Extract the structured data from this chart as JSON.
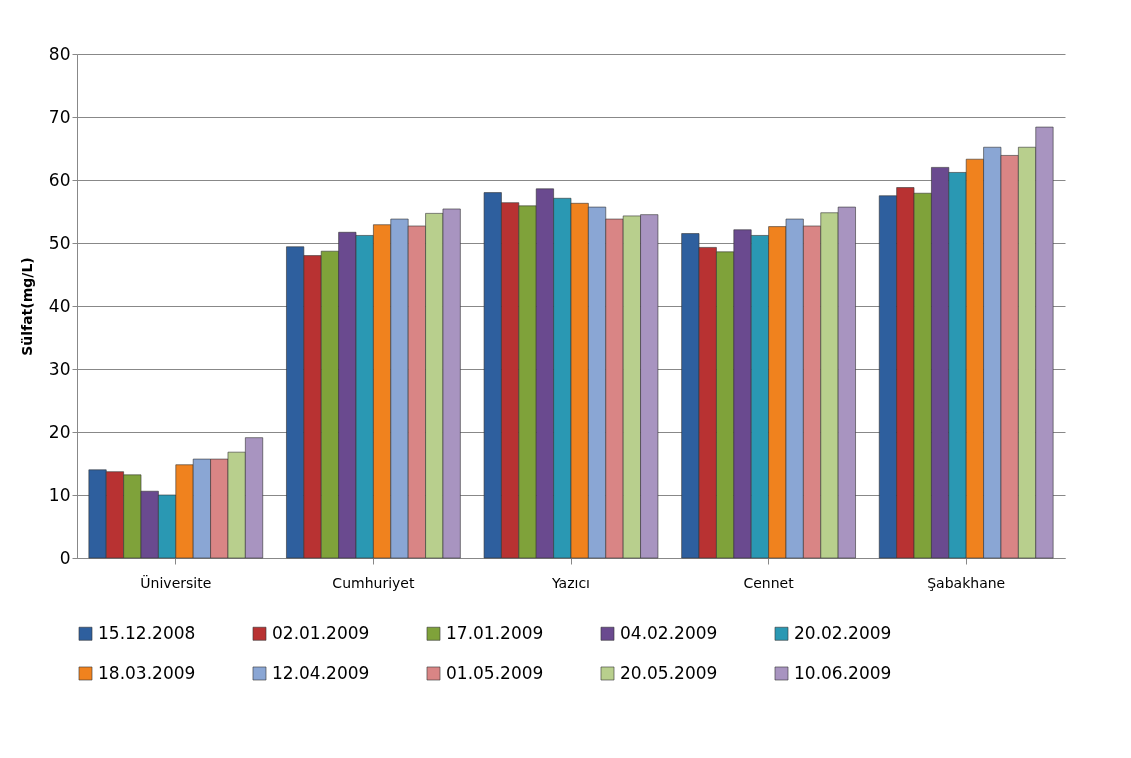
{
  "chart_data": {
    "type": "bar",
    "ylabel": "Sülfat(mg/L)",
    "categories": [
      "Üniversite",
      "Cumhuriyet",
      "Yazıcı",
      "Cennet",
      "Şabakhane"
    ],
    "series": [
      {
        "name": "15.12.2008",
        "color": "#2e5f9e",
        "values": [
          14,
          49.4,
          58,
          51.5,
          57.5
        ]
      },
      {
        "name": "02.01.2009",
        "color": "#b83232",
        "values": [
          13.7,
          48,
          56.4,
          49.3,
          58.8
        ]
      },
      {
        "name": "17.01.2009",
        "color": "#7fa23a",
        "values": [
          13.2,
          48.7,
          55.9,
          48.6,
          57.9
        ]
      },
      {
        "name": "04.02.2009",
        "color": "#6a4a8f",
        "values": [
          10.6,
          51.7,
          58.6,
          52.1,
          62
        ]
      },
      {
        "name": "20.02.2009",
        "color": "#2a98b3",
        "values": [
          10,
          51.2,
          57.1,
          51.2,
          61.2
        ]
      },
      {
        "name": "18.03.2009",
        "color": "#f0821e",
        "values": [
          14.8,
          52.9,
          56.3,
          52.6,
          63.3
        ]
      },
      {
        "name": "12.04.2009",
        "color": "#8aa6d4",
        "values": [
          15.7,
          53.8,
          55.7,
          53.8,
          65.2
        ]
      },
      {
        "name": "01.05.2009",
        "color": "#d98585",
        "values": [
          15.7,
          52.7,
          53.8,
          52.7,
          63.9
        ]
      },
      {
        "name": "20.05.2009",
        "color": "#b8cf8d",
        "values": [
          16.8,
          54.7,
          54.3,
          54.8,
          65.2
        ]
      },
      {
        "name": "10.06.2009",
        "color": "#a894c0",
        "values": [
          19.1,
          55.4,
          54.5,
          55.7,
          68.4
        ]
      }
    ],
    "ylim": [
      0,
      80
    ],
    "yticks": [
      0,
      10,
      20,
      30,
      40,
      50,
      60,
      70,
      80
    ],
    "grid": "y",
    "legend": "bottom"
  }
}
